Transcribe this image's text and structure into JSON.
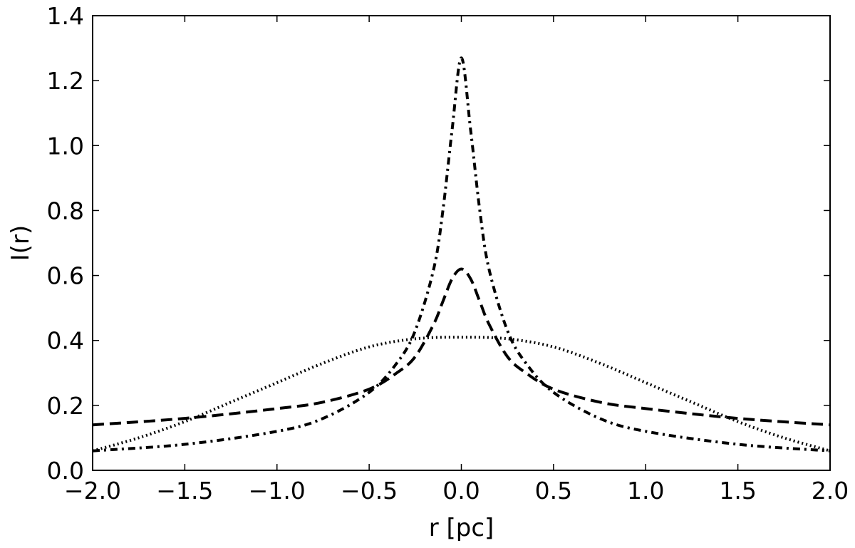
{
  "chart_data": {
    "type": "line",
    "title": "",
    "xlabel": "r [pc]",
    "ylabel": "I(r)",
    "xlim": [
      -2.0,
      2.0
    ],
    "ylim": [
      0.0,
      1.4
    ],
    "xticks": [
      -2.0,
      -1.5,
      -1.0,
      -0.5,
      0.0,
      0.5,
      1.0,
      1.5,
      2.0
    ],
    "xtick_labels": [
      "−2.0",
      "−1.5",
      "−1.0",
      "−0.5",
      "0.0",
      "0.5",
      "1.0",
      "1.5",
      "2.0"
    ],
    "yticks": [
      0.0,
      0.2,
      0.4,
      0.6,
      0.8,
      1.0,
      1.2,
      1.4
    ],
    "ytick_labels": [
      "0.0",
      "0.2",
      "0.4",
      "0.6",
      "0.8",
      "1.0",
      "1.2",
      "1.4"
    ],
    "grid": false,
    "legend": "none",
    "series": [
      {
        "style": "dash-dot",
        "color": "#000000",
        "x": [
          -2.0,
          -1.5,
          -1.0,
          -0.75,
          -0.5,
          -0.35,
          -0.25,
          -0.15,
          -0.1,
          -0.05,
          0.0,
          0.05,
          0.1,
          0.15,
          0.25,
          0.35,
          0.5,
          0.75,
          1.0,
          1.5,
          2.0
        ],
        "y": [
          0.06,
          0.08,
          0.12,
          0.16,
          0.24,
          0.33,
          0.43,
          0.62,
          0.8,
          1.05,
          1.27,
          1.05,
          0.8,
          0.62,
          0.43,
          0.33,
          0.24,
          0.16,
          0.12,
          0.08,
          0.06
        ]
      },
      {
        "style": "dashed",
        "color": "#000000",
        "x": [
          -2.0,
          -1.5,
          -1.0,
          -0.75,
          -0.5,
          -0.35,
          -0.25,
          -0.15,
          -0.1,
          -0.05,
          0.0,
          0.05,
          0.1,
          0.15,
          0.25,
          0.35,
          0.5,
          0.75,
          1.0,
          1.5,
          2.0
        ],
        "y": [
          0.14,
          0.16,
          0.19,
          0.21,
          0.25,
          0.3,
          0.35,
          0.45,
          0.52,
          0.59,
          0.62,
          0.59,
          0.52,
          0.45,
          0.35,
          0.3,
          0.25,
          0.21,
          0.19,
          0.16,
          0.14
        ]
      },
      {
        "style": "dotted",
        "color": "#000000",
        "x": [
          -2.0,
          -1.75,
          -1.5,
          -1.25,
          -1.0,
          -0.75,
          -0.5,
          -0.25,
          0.0,
          0.25,
          0.5,
          0.75,
          1.0,
          1.25,
          1.5,
          1.75,
          2.0
        ],
        "y": [
          0.06,
          0.1,
          0.15,
          0.21,
          0.27,
          0.33,
          0.38,
          0.405,
          0.41,
          0.405,
          0.38,
          0.33,
          0.27,
          0.21,
          0.15,
          0.1,
          0.06
        ]
      }
    ]
  }
}
